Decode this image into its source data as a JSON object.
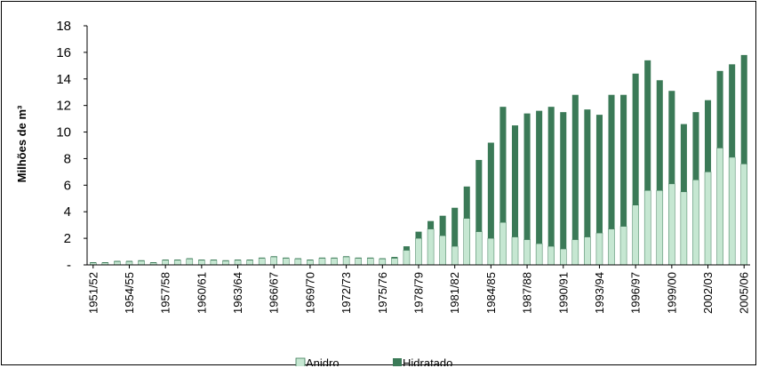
{
  "chart_data": {
    "type": "bar",
    "stacked": true,
    "title": "",
    "xlabel": "",
    "ylabel": "Milhões de m³",
    "ylim": [
      0,
      18
    ],
    "yticks": [
      0,
      2,
      4,
      6,
      8,
      10,
      12,
      14,
      16,
      18
    ],
    "ytick_labels": [
      "-",
      "2",
      "4",
      "6",
      "8",
      "10",
      "12",
      "14",
      "16",
      "18"
    ],
    "grid": false,
    "legend_position": "bottom",
    "categories": [
      "1951/52",
      "1952/53",
      "1953/54",
      "1954/55",
      "1955/56",
      "1956/57",
      "1957/58",
      "1958/59",
      "1959/60",
      "1960/61",
      "1961/62",
      "1962/63",
      "1963/64",
      "1964/65",
      "1965/66",
      "1966/67",
      "1967/68",
      "1968/69",
      "1969/70",
      "1970/71",
      "1971/72",
      "1972/73",
      "1973/74",
      "1974/75",
      "1975/76",
      "1976/77",
      "1977/78",
      "1978/79",
      "1979/80",
      "1980/81",
      "1981/82",
      "1982/83",
      "1983/84",
      "1984/85",
      "1985/86",
      "1986/87",
      "1987/88",
      "1988/89",
      "1989/90",
      "1990/91",
      "1991/92",
      "1992/93",
      "1993/94",
      "1994/95",
      "1995/96",
      "1996/97",
      "1997/98",
      "1998/99",
      "1999/00",
      "2000/01",
      "2001/02",
      "2002/03",
      "2003/04",
      "2004/05",
      "2005/06"
    ],
    "xtick_labels": [
      "1951/52",
      "1954/55",
      "1957/58",
      "1960/61",
      "1963/64",
      "1966/67",
      "1969/70",
      "1972/73",
      "1975/76",
      "1978/79",
      "1981/82",
      "1984/85",
      "1987/88",
      "1990/91",
      "1993/94",
      "1996/97",
      "1999/00",
      "2002/03",
      "2005/06"
    ],
    "series": [
      {
        "name": "Anidro",
        "color": "#c6e7d2",
        "values": [
          0.15,
          0.15,
          0.25,
          0.25,
          0.3,
          0.15,
          0.35,
          0.35,
          0.45,
          0.35,
          0.35,
          0.3,
          0.35,
          0.35,
          0.5,
          0.6,
          0.5,
          0.45,
          0.35,
          0.5,
          0.5,
          0.6,
          0.5,
          0.5,
          0.45,
          0.5,
          1.1,
          2.0,
          2.7,
          2.2,
          1.4,
          3.5,
          2.5,
          2.0,
          3.2,
          2.1,
          1.9,
          1.6,
          1.4,
          1.2,
          1.9,
          2.1,
          2.4,
          2.7,
          2.9,
          4.5,
          5.6,
          5.6,
          6.1,
          5.5,
          6.4,
          7.0,
          8.8,
          8.1,
          7.6
        ]
      },
      {
        "name": "Hidratado",
        "color": "#3b7a57",
        "values": [
          0.05,
          0.05,
          0.05,
          0.05,
          0.05,
          0.05,
          0.05,
          0.05,
          0.05,
          0.05,
          0.05,
          0.05,
          0.05,
          0.05,
          0.05,
          0.05,
          0.05,
          0.05,
          0.05,
          0.05,
          0.05,
          0.05,
          0.05,
          0.05,
          0.05,
          0.1,
          0.3,
          0.5,
          0.6,
          1.5,
          2.9,
          2.4,
          5.4,
          7.2,
          8.7,
          8.4,
          9.5,
          10.0,
          10.5,
          10.3,
          10.9,
          9.6,
          8.9,
          10.1,
          9.9,
          9.9,
          9.8,
          8.3,
          7.0,
          5.1,
          5.1,
          5.4,
          5.8,
          7.0,
          8.2
        ]
      }
    ]
  }
}
